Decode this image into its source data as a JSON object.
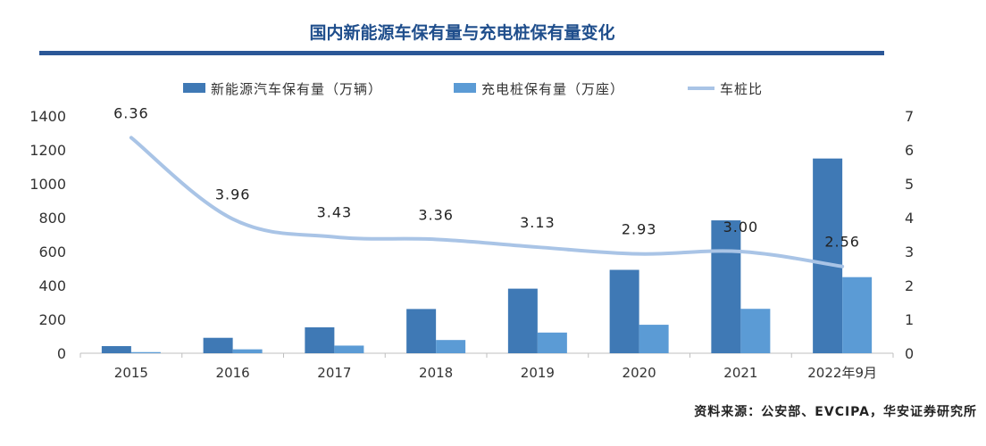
{
  "title": "国内新能源车保有量与充电桩保有量变化",
  "source": "资料来源：公安部、EVCIPA，华安证券研究所",
  "colors": {
    "title": "#1f4e8c",
    "rule": "#2b5797",
    "ev": "#3f79b5",
    "pile": "#5b9bd5",
    "ratio": "#a9c4e6",
    "axis_text": "#333333"
  },
  "chart_data": {
    "type": "bar",
    "categories": [
      "2015",
      "2016",
      "2017",
      "2018",
      "2019",
      "2020",
      "2021",
      "2022年9月"
    ],
    "series": [
      {
        "name": "新能源汽车保有量（万辆）",
        "kind": "bar",
        "axis": "left",
        "values": [
          42,
          91,
          153,
          261,
          381,
          492,
          784,
          1149
        ]
      },
      {
        "name": "充电桩保有量（万座）",
        "kind": "bar",
        "axis": "left",
        "values": [
          6.6,
          23,
          45,
          78,
          122,
          168,
          262,
          449
        ]
      },
      {
        "name": "车桩比",
        "kind": "line",
        "axis": "right",
        "values": [
          6.36,
          3.96,
          3.43,
          3.36,
          3.13,
          2.93,
          3.0,
          2.56
        ],
        "labels": [
          "6.36",
          "3.96",
          "3.43",
          "3.36",
          "3.13",
          "2.93",
          "3.00",
          "2.56"
        ]
      }
    ],
    "left_axis": {
      "min": 0,
      "max": 1400,
      "ticks": [
        "0",
        "200",
        "400",
        "600",
        "800",
        "1000",
        "1200",
        "1400"
      ]
    },
    "right_axis": {
      "min": 0,
      "max": 7,
      "ticks": [
        "0",
        "1",
        "2",
        "3",
        "4",
        "5",
        "6",
        "7"
      ]
    },
    "legend_position": "top",
    "grid": false
  }
}
